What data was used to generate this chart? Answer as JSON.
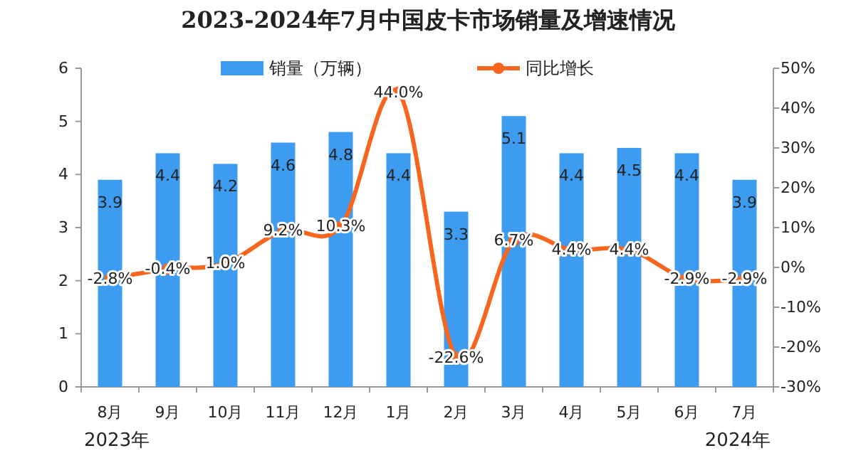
{
  "chart_data": {
    "type": "bar",
    "title": "2023-2024年7月中国皮卡市场销量及增速情况",
    "categories": [
      "8月",
      "9月",
      "10月",
      "11月",
      "12月",
      "1月",
      "2月",
      "3月",
      "4月",
      "5月",
      "6月",
      "7月"
    ],
    "series": [
      {
        "name": "销量（万辆）",
        "color": "#3d9cf0",
        "values": [
          3.9,
          4.4,
          4.2,
          4.6,
          4.8,
          4.4,
          3.3,
          5.1,
          4.4,
          4.5,
          4.4,
          3.9
        ],
        "value_labels": [
          "3.9",
          "4.4",
          "4.2",
          "4.6",
          "4.8",
          "4.4",
          "3.3",
          "5.1",
          "4.4",
          "4.5",
          "4.4",
          "3.9"
        ]
      },
      {
        "name": "同比增长",
        "type": "line",
        "axis": "y2",
        "color": "#f7661e",
        "values": [
          -2.8,
          -0.4,
          1.0,
          9.2,
          10.3,
          44.0,
          -22.6,
          6.7,
          4.4,
          4.4,
          -2.9,
          -2.9
        ],
        "value_labels": [
          "-2.8%",
          "-0.4%",
          "1.0%",
          "9.2%",
          "10.3%",
          "44.0%",
          "-22.6%",
          "6.7%",
          "4.4%",
          "4.4%",
          "-2.9%",
          "-2.9%"
        ]
      }
    ],
    "ylim": [
      0,
      6
    ],
    "yticks": [
      0,
      1,
      2,
      3,
      4,
      5,
      6
    ],
    "y2lim": [
      -30,
      50
    ],
    "y2ticks": [
      {
        "value": -30,
        "label": "-30%"
      },
      {
        "value": -20,
        "label": "-20%"
      },
      {
        "value": -10,
        "label": "-10%"
      },
      {
        "value": 0,
        "label": "0%"
      },
      {
        "value": 10,
        "label": "10%"
      },
      {
        "value": 20,
        "label": "20%"
      },
      {
        "value": 30,
        "label": "30%"
      },
      {
        "value": 40,
        "label": "40%"
      },
      {
        "value": 50,
        "label": "50%"
      }
    ],
    "marker": "circle",
    "legend": "top",
    "annotations": [
      "2023年",
      "2024年"
    ]
  }
}
